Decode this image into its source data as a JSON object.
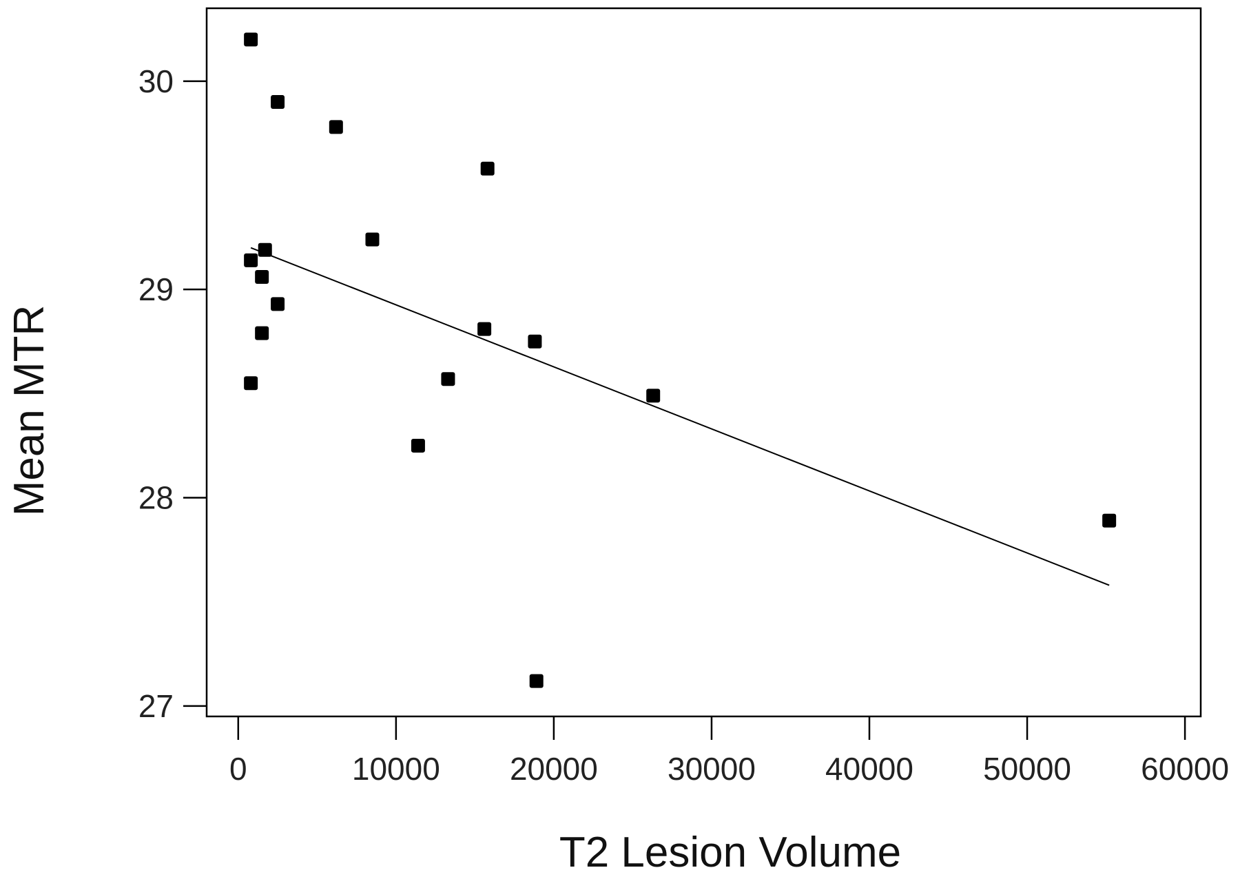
{
  "chart_data": {
    "type": "scatter",
    "xlabel": "T2 Lesion Volume",
    "ylabel": "Mean MTR",
    "xlim": [
      -2000,
      61000
    ],
    "ylim": [
      26.95,
      30.35
    ],
    "x_ticks": [
      0,
      10000,
      20000,
      30000,
      40000,
      50000,
      60000
    ],
    "x_tick_labels": [
      "0",
      "10000",
      "20000",
      "30000",
      "40000",
      "50000",
      "60000"
    ],
    "y_ticks": [
      27,
      28,
      29,
      30
    ],
    "y_tick_labels": [
      "27",
      "28",
      "29",
      "30"
    ],
    "grid": false,
    "points": [
      {
        "x": 800,
        "y": 30.2
      },
      {
        "x": 2500,
        "y": 29.9
      },
      {
        "x": 6200,
        "y": 29.78
      },
      {
        "x": 15800,
        "y": 29.58
      },
      {
        "x": 8500,
        "y": 29.24
      },
      {
        "x": 1700,
        "y": 29.19
      },
      {
        "x": 800,
        "y": 29.14
      },
      {
        "x": 1500,
        "y": 29.06
      },
      {
        "x": 2500,
        "y": 28.93
      },
      {
        "x": 15600,
        "y": 28.81
      },
      {
        "x": 1500,
        "y": 28.79
      },
      {
        "x": 18800,
        "y": 28.75
      },
      {
        "x": 13300,
        "y": 28.57
      },
      {
        "x": 800,
        "y": 28.55
      },
      {
        "x": 26300,
        "y": 28.49
      },
      {
        "x": 11400,
        "y": 28.25
      },
      {
        "x": 55200,
        "y": 27.89
      },
      {
        "x": 18900,
        "y": 27.12
      }
    ],
    "fit_line": {
      "x": [
        800,
        55200
      ],
      "y": [
        29.2,
        27.58
      ]
    },
    "colors": {
      "points": "#000000",
      "line": "#000000",
      "axes": "#000000"
    }
  }
}
